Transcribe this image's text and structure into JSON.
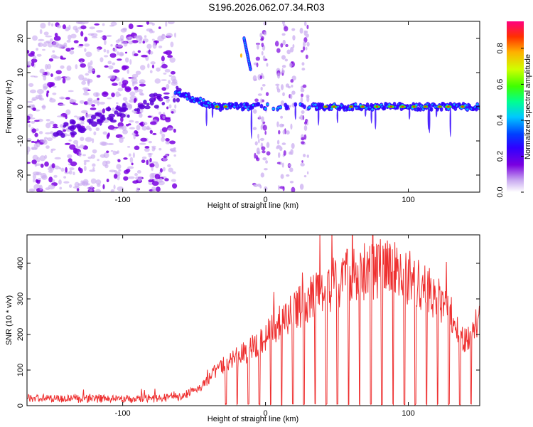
{
  "title": "S196.2026.062.07.34.R03",
  "chart_data": [
    {
      "type": "heatmap",
      "title": "",
      "xlabel": "Height of straight line (km)",
      "ylabel": "Frequency (Hz)",
      "xlim": [
        -167,
        150
      ],
      "ylim": [
        -25,
        25
      ],
      "xticks": [
        -100,
        0,
        100
      ],
      "yticks": [
        -20,
        -10,
        0,
        10,
        20
      ],
      "colorbar": {
        "label": "Normalized spectral amplitude",
        "range": [
          0,
          0.95
        ],
        "ticks": [
          0.0,
          0.2,
          0.4,
          0.6,
          0.8
        ],
        "colormap": [
          "#ffffff",
          "#c8a8f0",
          "#7a00e0",
          "#3000ff",
          "#0040ff",
          "#00c8ff",
          "#00ff90",
          "#40ff00",
          "#d0ff00",
          "#ffb000",
          "#ff3000",
          "#ff0080"
        ]
      },
      "features": [
        {
          "name": "noise region",
          "x_range": [
            -167,
            -63
          ],
          "freq_range": [
            -25,
            25
          ]
        },
        {
          "name": "signal line",
          "x_range": [
            -63,
            150
          ],
          "freq_center": 0
        },
        {
          "name": "burst",
          "x": -15,
          "freq_range": [
            11,
            20
          ]
        },
        {
          "name": "noise band",
          "x_range": [
            -8,
            30
          ],
          "freq_range": [
            -25,
            25
          ]
        }
      ]
    },
    {
      "type": "line",
      "title": "",
      "xlabel": "Height of straight line (km)",
      "ylabel": "SNR (10 * v/v)",
      "xlim": [
        -167,
        150
      ],
      "ylim": [
        0,
        480
      ],
      "xticks": [
        -100,
        0,
        100
      ],
      "yticks": [
        0,
        100,
        200,
        300,
        400
      ],
      "series": [
        {
          "name": "SNR",
          "color": "#ee3030",
          "x": [
            -167,
            -140,
            -110,
            -80,
            -60,
            -45,
            -35,
            -20,
            -10,
            0,
            10,
            20,
            30,
            40,
            50,
            60,
            70,
            80,
            90,
            100,
            110,
            120,
            130,
            140,
            150
          ],
          "values": [
            20,
            20,
            20,
            20,
            25,
            50,
            100,
            135,
            160,
            195,
            235,
            265,
            295,
            320,
            350,
            365,
            375,
            385,
            380,
            360,
            335,
            300,
            255,
            175,
            240
          ]
        }
      ]
    }
  ]
}
